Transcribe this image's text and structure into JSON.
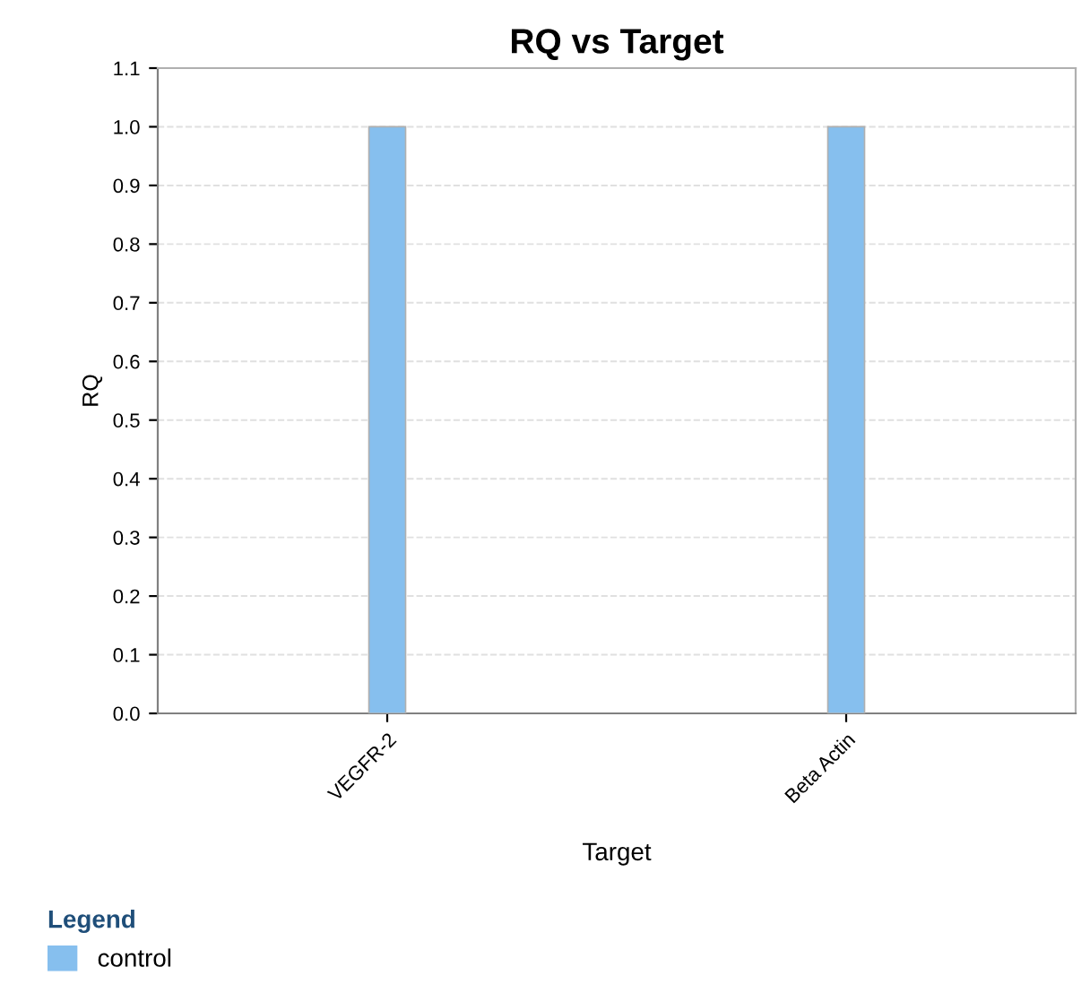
{
  "chart_data": {
    "type": "bar",
    "title": "RQ vs Target",
    "xlabel": "Target",
    "ylabel": "RQ",
    "categories": [
      "VEGFR-2",
      "Beta Actin"
    ],
    "series": [
      {
        "name": "control",
        "color": "#86bfee",
        "values": [
          1.0,
          1.0
        ]
      }
    ],
    "ylim": [
      0,
      1.1
    ],
    "yticks": [
      {
        "value": 0,
        "label": "0.0"
      },
      {
        "value": 0.1,
        "label": "0.1"
      },
      {
        "value": 0.2,
        "label": "0.2"
      },
      {
        "value": 0.3,
        "label": "0.3"
      },
      {
        "value": 0.4,
        "label": "0.4"
      },
      {
        "value": 0.5,
        "label": "0.5"
      },
      {
        "value": 0.6,
        "label": "0.6"
      },
      {
        "value": 0.7,
        "label": "0.7"
      },
      {
        "value": 0.8,
        "label": "0.8"
      },
      {
        "value": 0.9,
        "label": "0.9"
      },
      {
        "value": 1.0,
        "label": "1.0"
      },
      {
        "value": 1.1,
        "label": "1.1"
      }
    ],
    "grid": "y",
    "legend": "bottom left",
    "legend_title": "Legend"
  }
}
